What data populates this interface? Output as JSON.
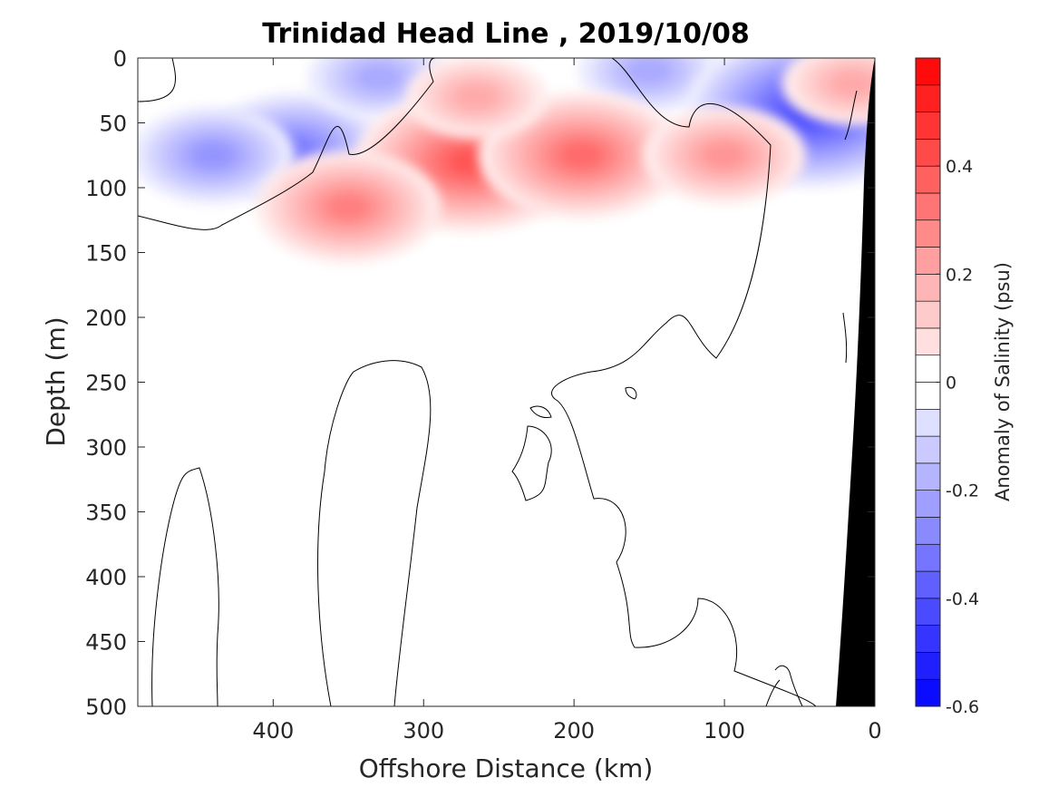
{
  "chart_data": {
    "type": "contour",
    "title": "Trinidad Head Line , 2019/10/08",
    "xlabel": "Offshore Distance (km)",
    "ylabel": "Depth (m)",
    "xlim": [
      490,
      0
    ],
    "ylim": [
      0,
      500
    ],
    "x_reversed": true,
    "y_reversed": true,
    "x_ticks": [
      400,
      300,
      200,
      100,
      0
    ],
    "y_ticks": [
      0,
      50,
      100,
      150,
      200,
      250,
      300,
      350,
      400,
      450,
      500
    ],
    "colorbar": {
      "label": "Anomaly of Salinity (psu)",
      "range": [
        -0.6,
        0.6
      ],
      "step": 0.05,
      "ticks": [
        -0.6,
        -0.4,
        -0.2,
        0,
        0.2,
        0.4
      ],
      "tick_labels": [
        "-0.6",
        "-0.4",
        "-0.2",
        "0",
        "0.2",
        "0.4"
      ],
      "colormap": "blue-white-red",
      "low_color": "#0000ff",
      "high_color": "#ff0000",
      "zero_color": "#ffffff"
    },
    "features": [
      {
        "sign": "negative",
        "x": 385,
        "y": 70,
        "peak": -0.3
      },
      {
        "sign": "negative",
        "x": 440,
        "y": 75,
        "peak": -0.25
      },
      {
        "sign": "negative",
        "x": 330,
        "y": 15,
        "peak": -0.22
      },
      {
        "sign": "negative",
        "x": 150,
        "y": 10,
        "peak": -0.2
      },
      {
        "sign": "negative",
        "x": 42,
        "y": 40,
        "peak": -0.45
      },
      {
        "sign": "positive",
        "x": 270,
        "y": 80,
        "peak": 0.4
      },
      {
        "sign": "positive",
        "x": 350,
        "y": 115,
        "peak": 0.3
      },
      {
        "sign": "positive",
        "x": 195,
        "y": 75,
        "peak": 0.33
      },
      {
        "sign": "positive",
        "x": 100,
        "y": 75,
        "peak": 0.25
      },
      {
        "sign": "positive",
        "x": 265,
        "y": 30,
        "peak": 0.2
      },
      {
        "sign": "positive",
        "x": 15,
        "y": 20,
        "peak": 0.2
      }
    ],
    "bottom_topography": "shelf/seafloor in black near 0 km",
    "grid": false
  }
}
